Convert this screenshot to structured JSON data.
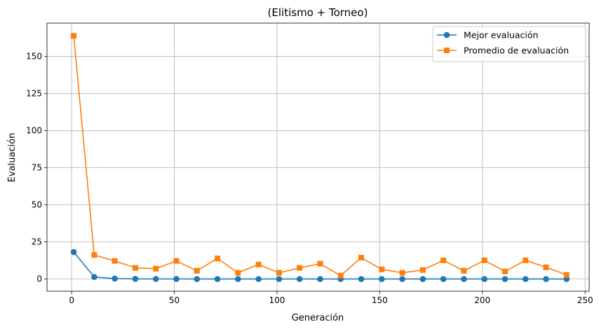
{
  "chart_data": {
    "type": "line",
    "title": "(Elitismo + Torneo)",
    "xlabel": "Generación",
    "ylabel": "Evaluación",
    "xlim": [
      -12,
      252
    ],
    "ylim": [
      -8.2,
      172.5
    ],
    "xticks": [
      0,
      50,
      100,
      150,
      200,
      250
    ],
    "yticks": [
      0,
      25,
      50,
      75,
      100,
      125,
      150
    ],
    "grid": true,
    "legend_position": "top-right",
    "x": [
      1,
      11,
      21,
      31,
      41,
      51,
      61,
      71,
      81,
      91,
      101,
      111,
      121,
      131,
      141,
      151,
      161,
      171,
      181,
      191,
      201,
      211,
      221,
      231,
      241
    ],
    "series": [
      {
        "name": "Mejor evaluación",
        "color": "#1f77b4",
        "marker": "circle",
        "values": [
          18.2,
          1.4,
          0.3,
          0.1,
          0.05,
          0.05,
          0.0,
          0.0,
          0.0,
          0.0,
          0.0,
          0.0,
          0.0,
          0.0,
          0.0,
          0.0,
          0.0,
          0.0,
          0.0,
          0.0,
          0.0,
          0.0,
          0.0,
          0.0,
          0.0
        ]
      },
      {
        "name": "Promedio de evaluación",
        "color": "#ff7f0e",
        "marker": "square",
        "values": [
          163.9,
          16.2,
          12.2,
          7.5,
          7.0,
          12.2,
          5.6,
          13.9,
          4.2,
          9.8,
          4.2,
          7.5,
          10.3,
          2.3,
          14.4,
          6.5,
          4.2,
          6.1,
          12.6,
          5.6,
          12.6,
          5.1,
          12.6,
          7.9,
          2.8
        ]
      }
    ]
  }
}
